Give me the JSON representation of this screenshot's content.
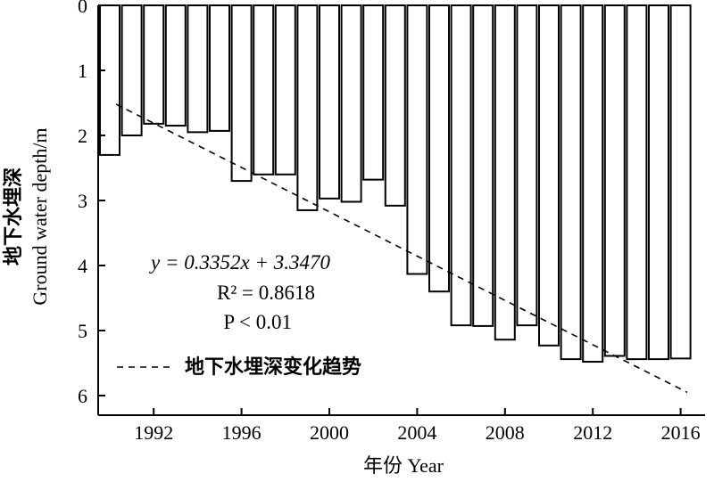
{
  "chart_data": {
    "type": "bar",
    "x_start": 1990,
    "categories": [
      "1990",
      "1991",
      "1992",
      "1993",
      "1994",
      "1995",
      "1996",
      "1997",
      "1998",
      "1999",
      "2000",
      "2001",
      "2002",
      "2003",
      "2004",
      "2005",
      "2006",
      "2007",
      "2008",
      "2009",
      "2010",
      "2011",
      "2012",
      "2013",
      "2014",
      "2015",
      "2016"
    ],
    "values": [
      2.3,
      2.0,
      1.82,
      1.85,
      1.95,
      1.93,
      2.7,
      2.6,
      2.6,
      3.15,
      2.97,
      3.02,
      2.68,
      3.08,
      4.13,
      4.4,
      4.92,
      4.93,
      5.14,
      4.92,
      5.23,
      5.44,
      5.48,
      5.39,
      5.44,
      5.44,
      5.43
    ],
    "xticks": [
      "1992",
      "1996",
      "2000",
      "2004",
      "2008",
      "2012",
      "2016"
    ],
    "yticks": [
      "0",
      "1",
      "2",
      "3",
      "4",
      "5",
      "6"
    ],
    "ylim": [
      0,
      6.5
    ],
    "y_inverted": true,
    "xlabel": "年份 Year",
    "ylabel_cn": "地下水埋深",
    "ylabel_en": "Ground water depth/m",
    "trend": {
      "slope": 0.3352,
      "intercept": 3.347,
      "style": "dashed"
    },
    "annotations": {
      "equation": "y = 0.3352x + 3.3470",
      "r2": "R² = 0.8618",
      "p": "P < 0.01"
    },
    "legend": {
      "label": "地下水埋深变化趋势",
      "placement": "bottom-left"
    }
  }
}
